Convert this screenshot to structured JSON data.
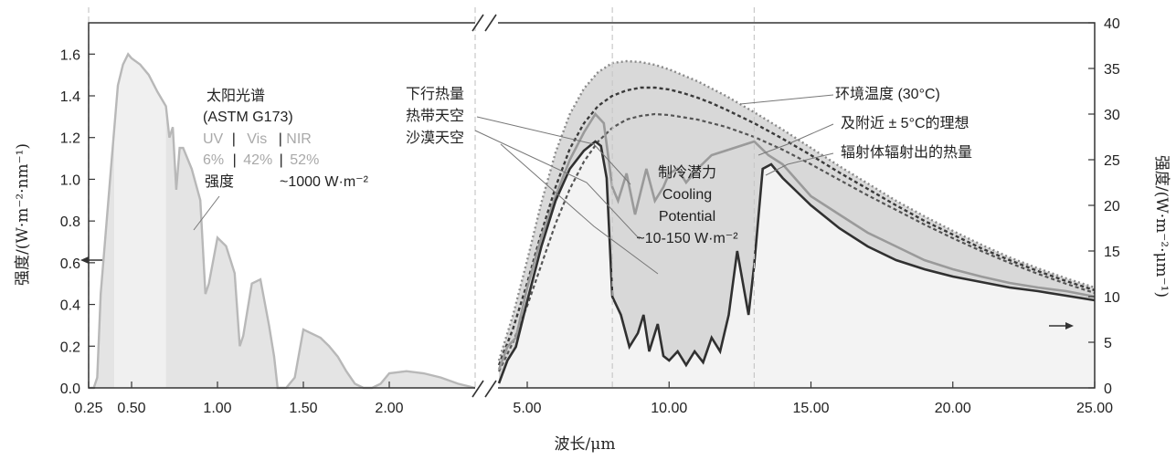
{
  "chart_data": {
    "type": "area",
    "xlabel": "波长/μm",
    "ylabel_left": "强度/(W·m⁻²·nm⁻¹)",
    "ylabel_right": "强度/(W·m⁻²·μm⁻¹)",
    "left_panel": {
      "xlim": [
        0.25,
        2.5
      ],
      "ylim": [
        0,
        1.75
      ],
      "x_ticks": [
        "0.25",
        "0.50",
        "1.00",
        "1.50",
        "2.00"
      ],
      "x_tick_values": [
        0.25,
        0.5,
        1.0,
        1.5,
        2.0
      ],
      "y_ticks": [
        "0.0",
        "0.2",
        "0.4",
        "0.6",
        "0.8",
        "1.0",
        "1.2",
        "1.4",
        "1.6"
      ],
      "y_tick_values": [
        0.0,
        0.2,
        0.4,
        0.6,
        0.8,
        1.0,
        1.2,
        1.4,
        1.6
      ],
      "band_edges_um": [
        0.25,
        0.4,
        0.7,
        2.5
      ],
      "series": [
        {
          "name": "太阳光谱 (ASTM G173)",
          "x": [
            0.25,
            0.28,
            0.3,
            0.32,
            0.35,
            0.38,
            0.4,
            0.42,
            0.45,
            0.48,
            0.5,
            0.55,
            0.6,
            0.65,
            0.7,
            0.72,
            0.74,
            0.76,
            0.78,
            0.8,
            0.85,
            0.9,
            0.93,
            0.95,
            1.0,
            1.05,
            1.1,
            1.13,
            1.15,
            1.2,
            1.25,
            1.3,
            1.33,
            1.35,
            1.4,
            1.45,
            1.5,
            1.55,
            1.6,
            1.65,
            1.7,
            1.75,
            1.8,
            1.85,
            1.9,
            1.95,
            2.0,
            2.1,
            2.2,
            2.3,
            2.4,
            2.5
          ],
          "y": [
            0.0,
            0.0,
            0.05,
            0.45,
            0.75,
            1.05,
            1.25,
            1.45,
            1.55,
            1.6,
            1.58,
            1.55,
            1.5,
            1.42,
            1.35,
            1.2,
            1.25,
            0.95,
            1.15,
            1.15,
            1.05,
            0.9,
            0.45,
            0.5,
            0.72,
            0.68,
            0.55,
            0.2,
            0.25,
            0.5,
            0.52,
            0.3,
            0.15,
            0.0,
            0.0,
            0.05,
            0.28,
            0.26,
            0.24,
            0.2,
            0.15,
            0.08,
            0.02,
            0.0,
            0.0,
            0.02,
            0.07,
            0.08,
            0.07,
            0.05,
            0.02,
            0.0
          ]
        }
      ]
    },
    "right_panel": {
      "xlim": [
        4.0,
        25.0
      ],
      "ylim": [
        0,
        40
      ],
      "x_ticks": [
        "5.00",
        "10.00",
        "15.00",
        "20.00",
        "25.00"
      ],
      "x_tick_values": [
        5,
        10,
        15,
        20,
        25
      ],
      "y_ticks": [
        "0",
        "5",
        "10",
        "15",
        "20",
        "25",
        "30",
        "35",
        "40"
      ],
      "y_tick_values": [
        0,
        5,
        10,
        15,
        20,
        25,
        30,
        35,
        40
      ],
      "window_edges_um": [
        8,
        13
      ],
      "series": [
        {
          "name": "环境温度 (30°C) 理想辐射体辐射出的热量",
          "x": [
            4.0,
            4.5,
            5.0,
            5.5,
            6.0,
            6.5,
            7.0,
            7.5,
            8.0,
            8.5,
            9.0,
            9.5,
            10.0,
            10.5,
            11.0,
            11.5,
            12.0,
            13.0,
            14.0,
            15.0,
            16.0,
            17.0,
            18.0,
            19.0,
            20.0,
            21.0,
            22.0,
            23.0,
            24.0,
            25.0
          ],
          "y": [
            2.5,
            6.5,
            11.5,
            17.0,
            22.0,
            26.2,
            29.0,
            30.9,
            32.0,
            32.6,
            32.9,
            32.9,
            32.7,
            32.3,
            31.8,
            31.2,
            30.5,
            29.0,
            27.3,
            25.5,
            23.6,
            21.8,
            20.0,
            18.3,
            16.8,
            15.3,
            14.0,
            12.8,
            11.7,
            10.7
          ]
        },
        {
          "name": "+5°C",
          "x": [
            4.0,
            4.5,
            5.0,
            5.5,
            6.0,
            6.5,
            7.0,
            7.5,
            8.0,
            8.5,
            9.0,
            9.5,
            10.0,
            11.0,
            12.0,
            13.0,
            14.0,
            15.0,
            16.0,
            17.0,
            18.0,
            19.0,
            20.0,
            21.0,
            22.0,
            23.0,
            24.0,
            25.0
          ],
          "y": [
            3.0,
            8.0,
            14.0,
            20.3,
            25.8,
            30.0,
            32.8,
            34.6,
            35.6,
            35.8,
            35.7,
            35.4,
            34.9,
            33.6,
            32.0,
            30.2,
            28.3,
            26.3,
            24.3,
            22.4,
            20.5,
            18.8,
            17.2,
            15.7,
            14.3,
            13.1,
            12.0,
            11.0
          ]
        },
        {
          "name": "-5°C",
          "x": [
            4.0,
            4.5,
            5.0,
            5.5,
            6.0,
            6.5,
            7.0,
            7.5,
            8.0,
            8.5,
            9.0,
            9.5,
            10.0,
            11.0,
            12.0,
            13.0,
            14.0,
            15.0,
            16.0,
            17.0,
            18.0,
            19.0,
            20.0,
            21.0,
            22.0,
            23.0,
            24.0,
            25.0
          ],
          "y": [
            1.8,
            5.0,
            9.0,
            13.5,
            18.0,
            21.8,
            24.8,
            27.0,
            28.5,
            29.4,
            29.8,
            30.0,
            29.9,
            29.4,
            28.6,
            27.5,
            26.1,
            24.5,
            22.8,
            21.1,
            19.5,
            17.9,
            16.4,
            15.0,
            13.7,
            12.5,
            11.4,
            10.4
          ]
        },
        {
          "name": "热带天空",
          "x": [
            4.0,
            4.3,
            4.6,
            5.0,
            5.5,
            6.0,
            6.5,
            7.0,
            7.4,
            7.7,
            8.0,
            8.2,
            8.5,
            8.8,
            9.0,
            9.2,
            9.5,
            9.8,
            10.0,
            10.3,
            10.6,
            11.0,
            11.5,
            12.0,
            12.5,
            13.0,
            13.5,
            14.0,
            15.0,
            16.0,
            17.0,
            18.0,
            19.0,
            20.0,
            21.0,
            22.0,
            23.0,
            24.0,
            25.0
          ],
          "y": [
            2.0,
            4.5,
            5.5,
            11.0,
            16.5,
            21.0,
            25.0,
            28.0,
            30.0,
            29.0,
            22.0,
            20.5,
            23.5,
            19.0,
            21.5,
            24.0,
            20.5,
            22.0,
            23.5,
            24.0,
            22.5,
            24.0,
            25.5,
            26.0,
            26.5,
            27.0,
            25.5,
            24.5,
            21.0,
            19.0,
            17.0,
            15.5,
            14.0,
            13.0,
            12.2,
            11.5,
            11.0,
            10.6,
            10.0
          ]
        },
        {
          "name": "沙漠天空",
          "x": [
            4.0,
            4.3,
            4.6,
            5.0,
            5.5,
            6.0,
            6.5,
            7.0,
            7.4,
            7.6,
            7.8,
            8.0,
            8.3,
            8.6,
            8.9,
            9.1,
            9.3,
            9.6,
            9.8,
            10.0,
            10.3,
            10.6,
            10.9,
            11.2,
            11.5,
            11.8,
            12.1,
            12.4,
            12.8,
            13.0,
            13.3,
            13.6,
            14.0,
            14.5,
            15.0,
            16.0,
            17.0,
            18.0,
            19.0,
            20.0,
            21.0,
            22.0,
            23.0,
            24.0,
            25.0
          ],
          "y": [
            0.5,
            3.0,
            4.5,
            9.5,
            15.5,
            20.5,
            24.0,
            26.0,
            27.0,
            26.5,
            23.0,
            10.0,
            8.0,
            4.5,
            6.0,
            8.0,
            4.0,
            7.0,
            3.5,
            3.0,
            4.0,
            2.5,
            4.0,
            2.8,
            5.5,
            4.0,
            8.0,
            15.0,
            8.0,
            13.5,
            24.0,
            24.5,
            23.0,
            21.5,
            20.0,
            17.5,
            15.5,
            14.0,
            13.0,
            12.2,
            11.6,
            11.0,
            10.6,
            10.1,
            9.6
          ]
        }
      ]
    }
  },
  "annotations": {
    "solar_title": "太阳光谱",
    "solar_source": "(ASTM G173)",
    "band_uv": "UV",
    "band_vis": "Vis",
    "band_nir": "NIR",
    "band_sep": "|",
    "pct_uv": "6%",
    "pct_vis": "42%",
    "pct_nir": "52%",
    "intensity_label": "强度",
    "intensity_value": "~1000 W·m⁻²",
    "downward_heat": "下行热量",
    "tropical_sky": "热带天空",
    "desert_sky": "沙漠天空",
    "cooling_cn": "制冷潜力",
    "cooling_en1": "Cooling",
    "cooling_en2": "Potential",
    "cooling_value": "~10-150 W·m⁻²",
    "ambient_line1": "环境温度 (30°C)",
    "ambient_line2": "及附近 ± 5°C的理想",
    "ambient_line3": "辐射体辐射出的热量"
  },
  "colors": {
    "solar_fill": "#e4e4e4",
    "solar_fill_light": "#f0f0f0",
    "solar_line": "#b8b8b8",
    "background_fill": "#f3f3f3",
    "potential_fill": "#d2d2d2",
    "tropical_line": "#9a9a9a",
    "desert_line": "#303030",
    "blackbody_dot": "#555555",
    "hot_dot": "#8a8a8a"
  }
}
